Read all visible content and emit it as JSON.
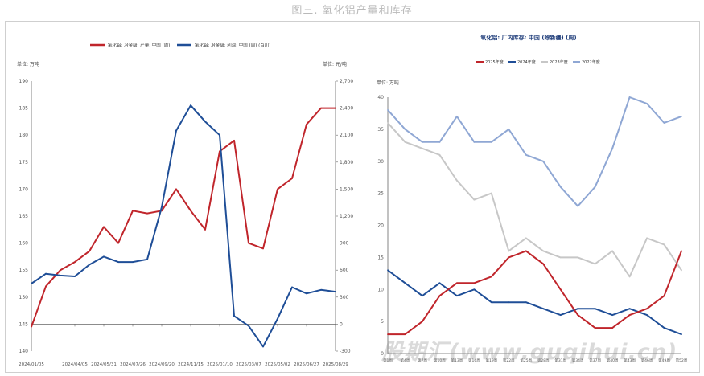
{
  "page_title": "图三. 氧化铝产量和库存",
  "watermark": "股期汇(www.guqihui.cn)",
  "chart_data": [
    {
      "type": "line",
      "left_unit": "单位: 万吨",
      "right_unit": "单位: 元/吨",
      "x": [
        "2024/01/05",
        "2024/02/02",
        "2024/03/01",
        "2024/04/05",
        "2024/05/03",
        "2024/05/31",
        "2024/06/28",
        "2024/07/26",
        "2024/08/23",
        "2024/09/20",
        "2024/10/18",
        "2024/11/15",
        "2024/12/13",
        "2025/01/10",
        "2025/02/07",
        "2025/03/07",
        "2025/04/04",
        "2025/05/02",
        "2025/05/30",
        "2025/06/27",
        "2025/07/25",
        "2025/08/29"
      ],
      "x_tick_labels": [
        "2024/01/05",
        "2024/04/05",
        "2024/05/31",
        "2024/07/26",
        "2024/09/20",
        "2024/11/15",
        "2025/01/10",
        "2025/03/07",
        "2025/05/02",
        "2025/06/27",
        "2025/08/29"
      ],
      "x_tick_index": [
        0,
        3,
        5,
        7,
        9,
        11,
        13,
        15,
        17,
        19,
        21
      ],
      "ylim_left": [
        140,
        190
      ],
      "ylim_right": [
        -300,
        2700
      ],
      "yticks_left": [
        "140",
        "145",
        "150",
        "155",
        "160",
        "165",
        "170",
        "175",
        "180",
        "185",
        "190"
      ],
      "yticks_right": [
        "-300",
        "0",
        "300",
        "600",
        "900",
        "1,200",
        "1,500",
        "1,800",
        "2,100",
        "2,400",
        "2,700"
      ],
      "legend_position": "top",
      "series": [
        {
          "name": "氧化铝: 冶金级: 产量: 中国 (周)",
          "axis": "left",
          "color": "#c0252b",
          "values": [
            144.5,
            152,
            155,
            156.5,
            158.5,
            163,
            160,
            166,
            165.5,
            166,
            170,
            166,
            162.5,
            177,
            179,
            160,
            159,
            170,
            172,
            182,
            185,
            185
          ]
        },
        {
          "name": "氧化铝: 冶金级: 利润: 中国 (周) (百川)",
          "axis": "right",
          "color": "#1f4e97",
          "values": [
            450,
            560,
            540,
            530,
            660,
            750,
            690,
            690,
            720,
            1300,
            2150,
            2430,
            2250,
            2100,
            90,
            -20,
            -250,
            60,
            410,
            340,
            380,
            360
          ]
        }
      ]
    },
    {
      "type": "line",
      "title": "氧化铝: 厂内库存: 中国 (除新疆) (周)",
      "y_unit": "单位: 万吨",
      "x_tick_labels": [
        "第1周",
        "第4周",
        "第7周",
        "第10周",
        "第13周",
        "第16周",
        "第19周",
        "第22周",
        "第25周",
        "第28周",
        "第31周",
        "第34周",
        "第37周",
        "第40周",
        "第43周",
        "第46周",
        "第49周",
        "第52周"
      ],
      "ylim": [
        0,
        40
      ],
      "yticks": [
        "0",
        "5",
        "10",
        "15",
        "20",
        "25",
        "30",
        "35",
        "40"
      ],
      "legend_position": "top",
      "series": [
        {
          "name": "2025年度",
          "color": "#c0252b",
          "values": [
            3,
            3,
            5,
            9,
            11,
            11,
            12,
            15,
            16,
            14,
            10,
            6,
            4,
            4,
            6,
            7,
            9,
            16
          ]
        },
        {
          "name": "2024年度",
          "color": "#1f4e97",
          "values": [
            13,
            11,
            9,
            11,
            9,
            10,
            8,
            8,
            8,
            7,
            6,
            7,
            7,
            6,
            7,
            6,
            4,
            3
          ]
        },
        {
          "name": "2023年度",
          "color": "#c7c7c7",
          "values": [
            36,
            33,
            32,
            31,
            27,
            24,
            25,
            16,
            18,
            16,
            15,
            15,
            14,
            16,
            12,
            18,
            17,
            13
          ]
        },
        {
          "name": "2022年度",
          "color": "#8fa7d4",
          "values": [
            38,
            35,
            33,
            33,
            37,
            33,
            33,
            35,
            31,
            30,
            26,
            23,
            26,
            32,
            40,
            39,
            36,
            37
          ]
        }
      ]
    }
  ]
}
